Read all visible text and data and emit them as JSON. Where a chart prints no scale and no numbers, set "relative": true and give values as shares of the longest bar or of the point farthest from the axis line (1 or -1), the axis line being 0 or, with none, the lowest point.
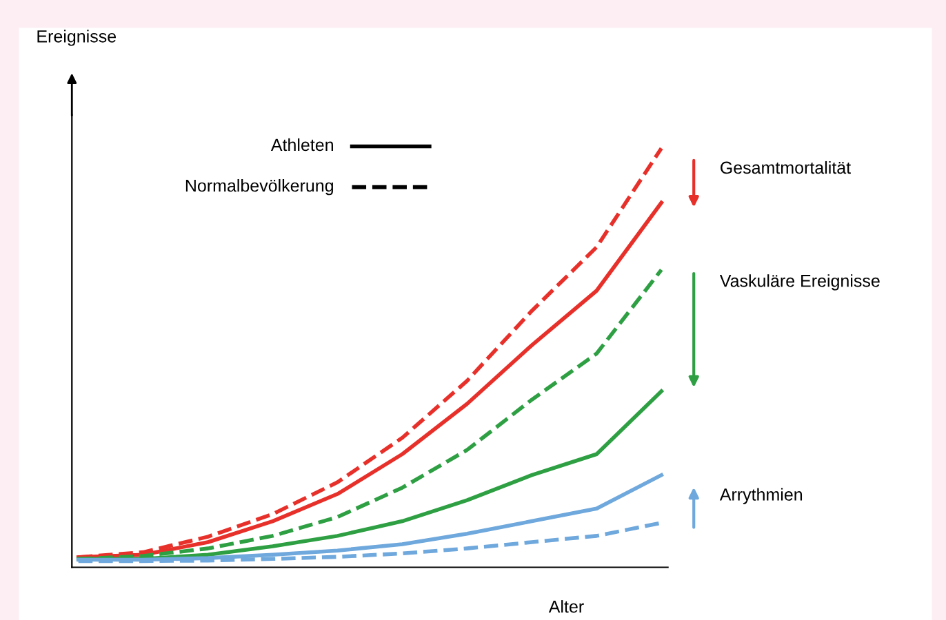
{
  "chart_data": {
    "type": "line",
    "relative": true,
    "xlabel": "Alter",
    "categories": [
      null,
      null,
      null,
      null,
      null,
      null,
      null,
      null,
      null,
      null
    ],
    "series": [
      {
        "color": "#e8302a",
        "line_style": "solid",
        "values": [
          0.024,
          0.03,
          0.06,
          0.11,
          0.175,
          0.27,
          0.39,
          0.53,
          0.66,
          0.87
        ]
      },
      {
        "color": "#e8302a",
        "line_style": "dashed",
        "values": [
          0.024,
          0.036,
          0.073,
          0.127,
          0.203,
          0.309,
          0.445,
          0.612,
          0.764,
          1
        ]
      },
      {
        "color": "#2ea043",
        "line_style": "solid",
        "values": [
          0.02,
          0.02,
          0.03,
          0.05,
          0.075,
          0.11,
          0.16,
          0.22,
          0.27,
          0.42
        ]
      },
      {
        "color": "#2ea043",
        "line_style": "dashed",
        "values": [
          0.02,
          0.027,
          0.045,
          0.075,
          0.12,
          0.19,
          0.28,
          0.4,
          0.51,
          0.71
        ]
      },
      {
        "color": "#6fa8dc",
        "line_style": "solid",
        "values": [
          0.018,
          0.018,
          0.022,
          0.03,
          0.04,
          0.055,
          0.08,
          0.11,
          0.14,
          0.22
        ]
      },
      {
        "color": "#6fa8dc",
        "line_style": "dashed",
        "values": [
          0.015,
          0.015,
          0.016,
          0.02,
          0.025,
          0.033,
          0.045,
          0.06,
          0.075,
          0.106
        ]
      }
    ],
    "annotations": [
      "Ereignisse",
      "Athleten",
      "Normalbevölkerung",
      "Gesamtmortalität",
      "Vaskuläre Ereignisse",
      "Arrythmien"
    ]
  }
}
